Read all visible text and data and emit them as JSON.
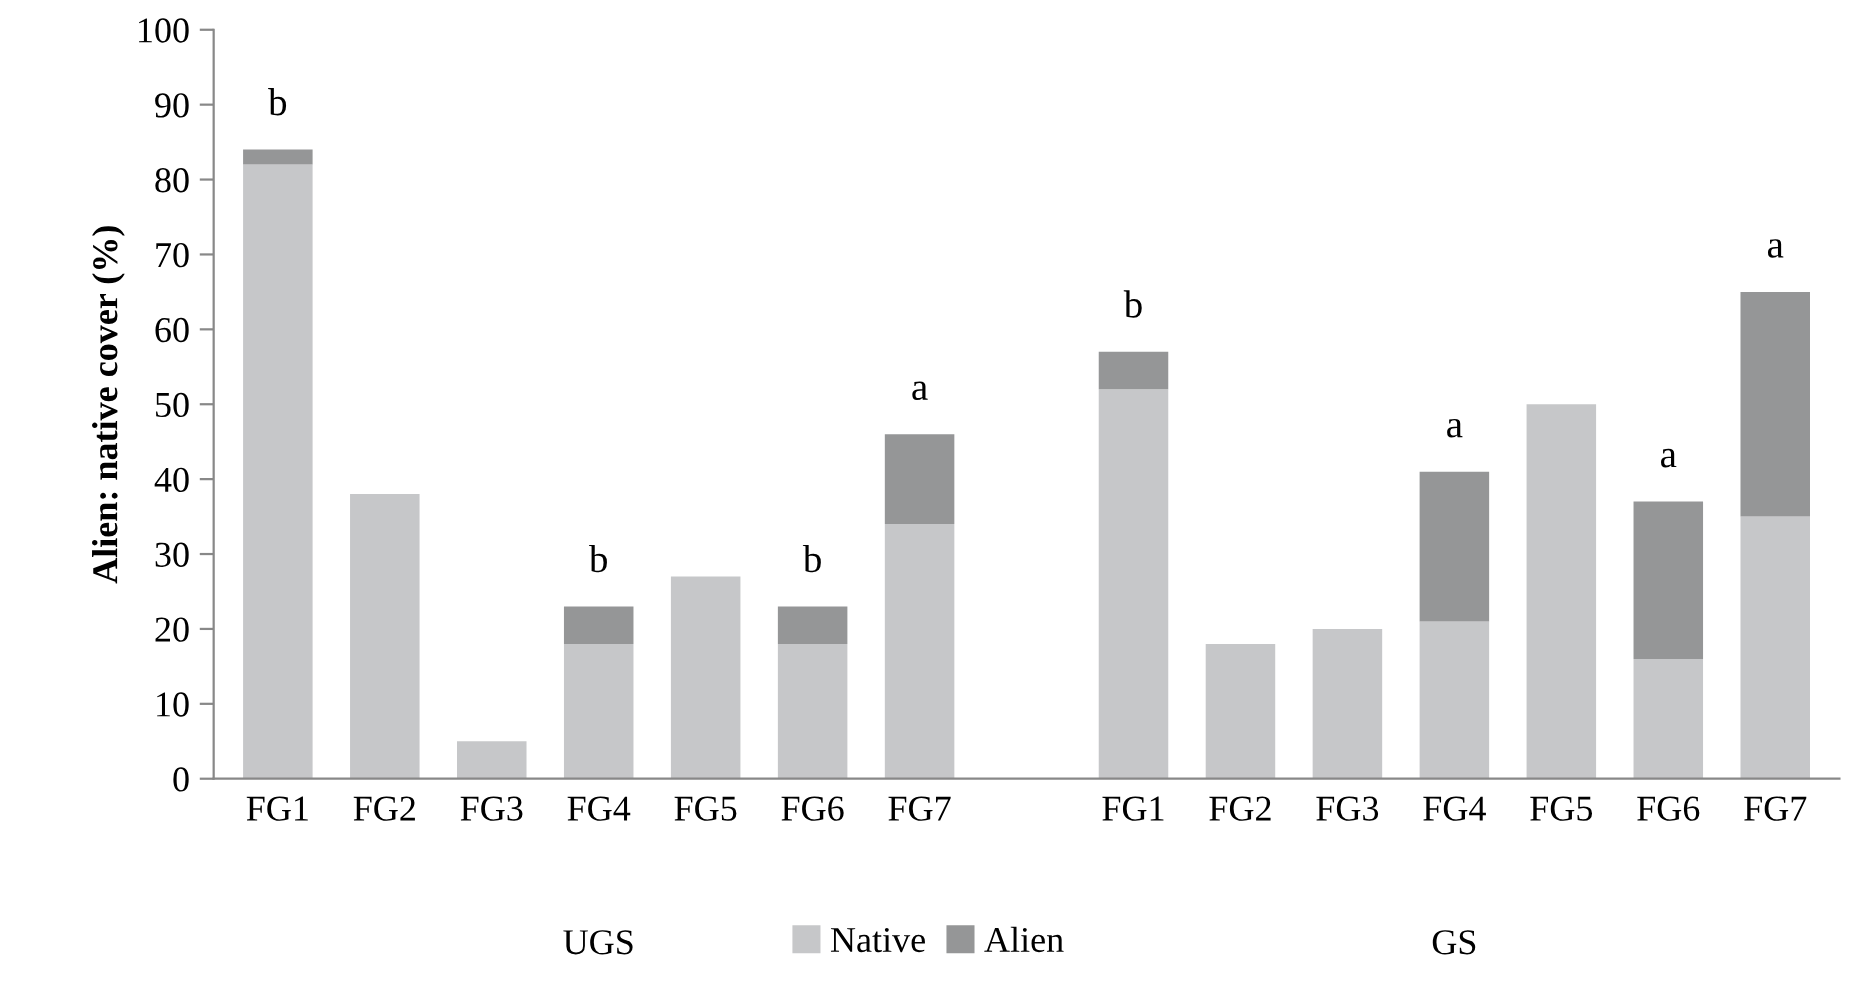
{
  "chart_data": {
    "type": "bar",
    "stacked": true,
    "ylabel": "Alien: native cover (%)",
    "categories": [
      "FG1",
      "FG2",
      "FG3",
      "FG4",
      "FG5",
      "FG6",
      "FG7",
      null,
      "FG1",
      "FG2",
      "FG3",
      "FG4",
      "FG5",
      "FG6",
      "FG7"
    ],
    "series": [
      {
        "name": "Native",
        "color": "#c6c7c9",
        "values": [
          82,
          38,
          5,
          18,
          27,
          18,
          34,
          null,
          52,
          18,
          20,
          21,
          50,
          16,
          35
        ]
      },
      {
        "name": "Alien",
        "color": "#959697",
        "values": [
          2,
          0,
          0,
          5,
          0,
          5,
          12,
          null,
          5,
          0,
          0,
          20,
          0,
          21,
          30
        ]
      }
    ],
    "totals": [
      "b",
      null,
      null,
      "b",
      null,
      "b",
      "a",
      null,
      "b",
      null,
      null,
      "a",
      null,
      "a",
      "a"
    ],
    "annotations": [
      "UGS",
      "GS"
    ],
    "ylim": [
      0,
      100
    ],
    "yticks": [
      0,
      10,
      20,
      30,
      40,
      50,
      60,
      70,
      80,
      90,
      100
    ],
    "grid": false,
    "legend": "bottom"
  }
}
